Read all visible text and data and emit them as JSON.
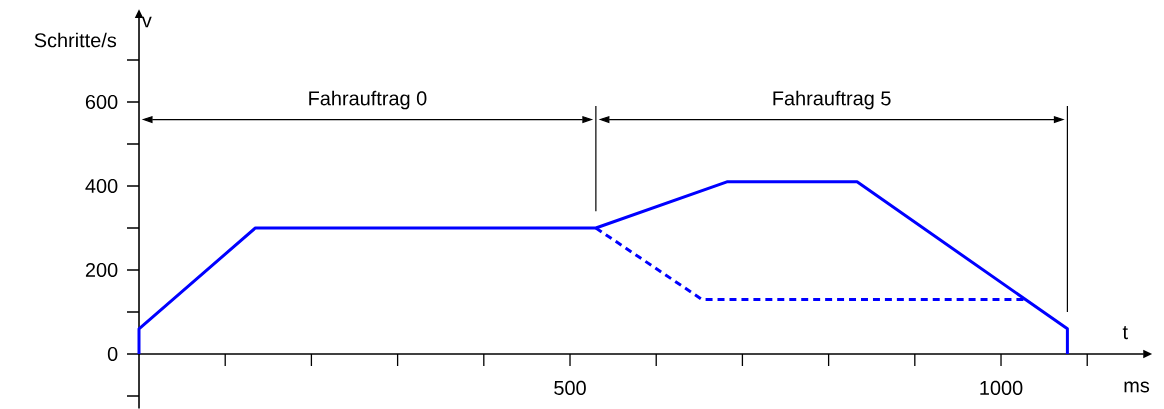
{
  "chart_data": {
    "type": "line",
    "xlabel": "t",
    "ylabel": "v",
    "xlim": [
      0,
      1165
    ],
    "ylim": [
      -130,
      800
    ],
    "xticks": [
      {
        "value": 100,
        "label": null
      },
      {
        "value": 200,
        "label": null
      },
      {
        "value": 300,
        "label": null
      },
      {
        "value": 400,
        "label": null
      },
      500,
      {
        "value": 600,
        "label": null
      },
      {
        "value": 700,
        "label": null
      },
      {
        "value": 800,
        "label": null
      },
      {
        "value": 900,
        "label": null
      },
      1000,
      {
        "value": 1100,
        "label": null
      }
    ],
    "yticks": [
      {
        "value": -100,
        "label": null
      },
      0,
      {
        "value": 100,
        "label": null
      },
      200,
      {
        "value": 300,
        "label": null
      },
      400,
      {
        "value": 500,
        "label": null
      },
      600,
      {
        "value": 700,
        "label": null
      }
    ],
    "series": [
      {
        "color": "#0000ff",
        "line_style": "solid",
        "x": [
          0,
          0,
          135,
          530,
          682,
          833,
          1077,
          1077
        ],
        "values": [
          0,
          60,
          300,
          300,
          410,
          410,
          60,
          0
        ]
      },
      {
        "color": "#0000ff",
        "line_style": "dashed",
        "x": [
          530,
          653,
          1029
        ],
        "values": [
          300,
          130,
          130
        ]
      }
    ],
    "ref_lines": [
      {
        "axis": "x",
        "value": 530,
        "color": "#000000"
      },
      {
        "axis": "x",
        "value": 1077,
        "color": "#000000"
      }
    ],
    "annotations": [
      "Schritte/s",
      "ms",
      "Fahrauftrag 0",
      "Fahrauftrag 5"
    ]
  }
}
